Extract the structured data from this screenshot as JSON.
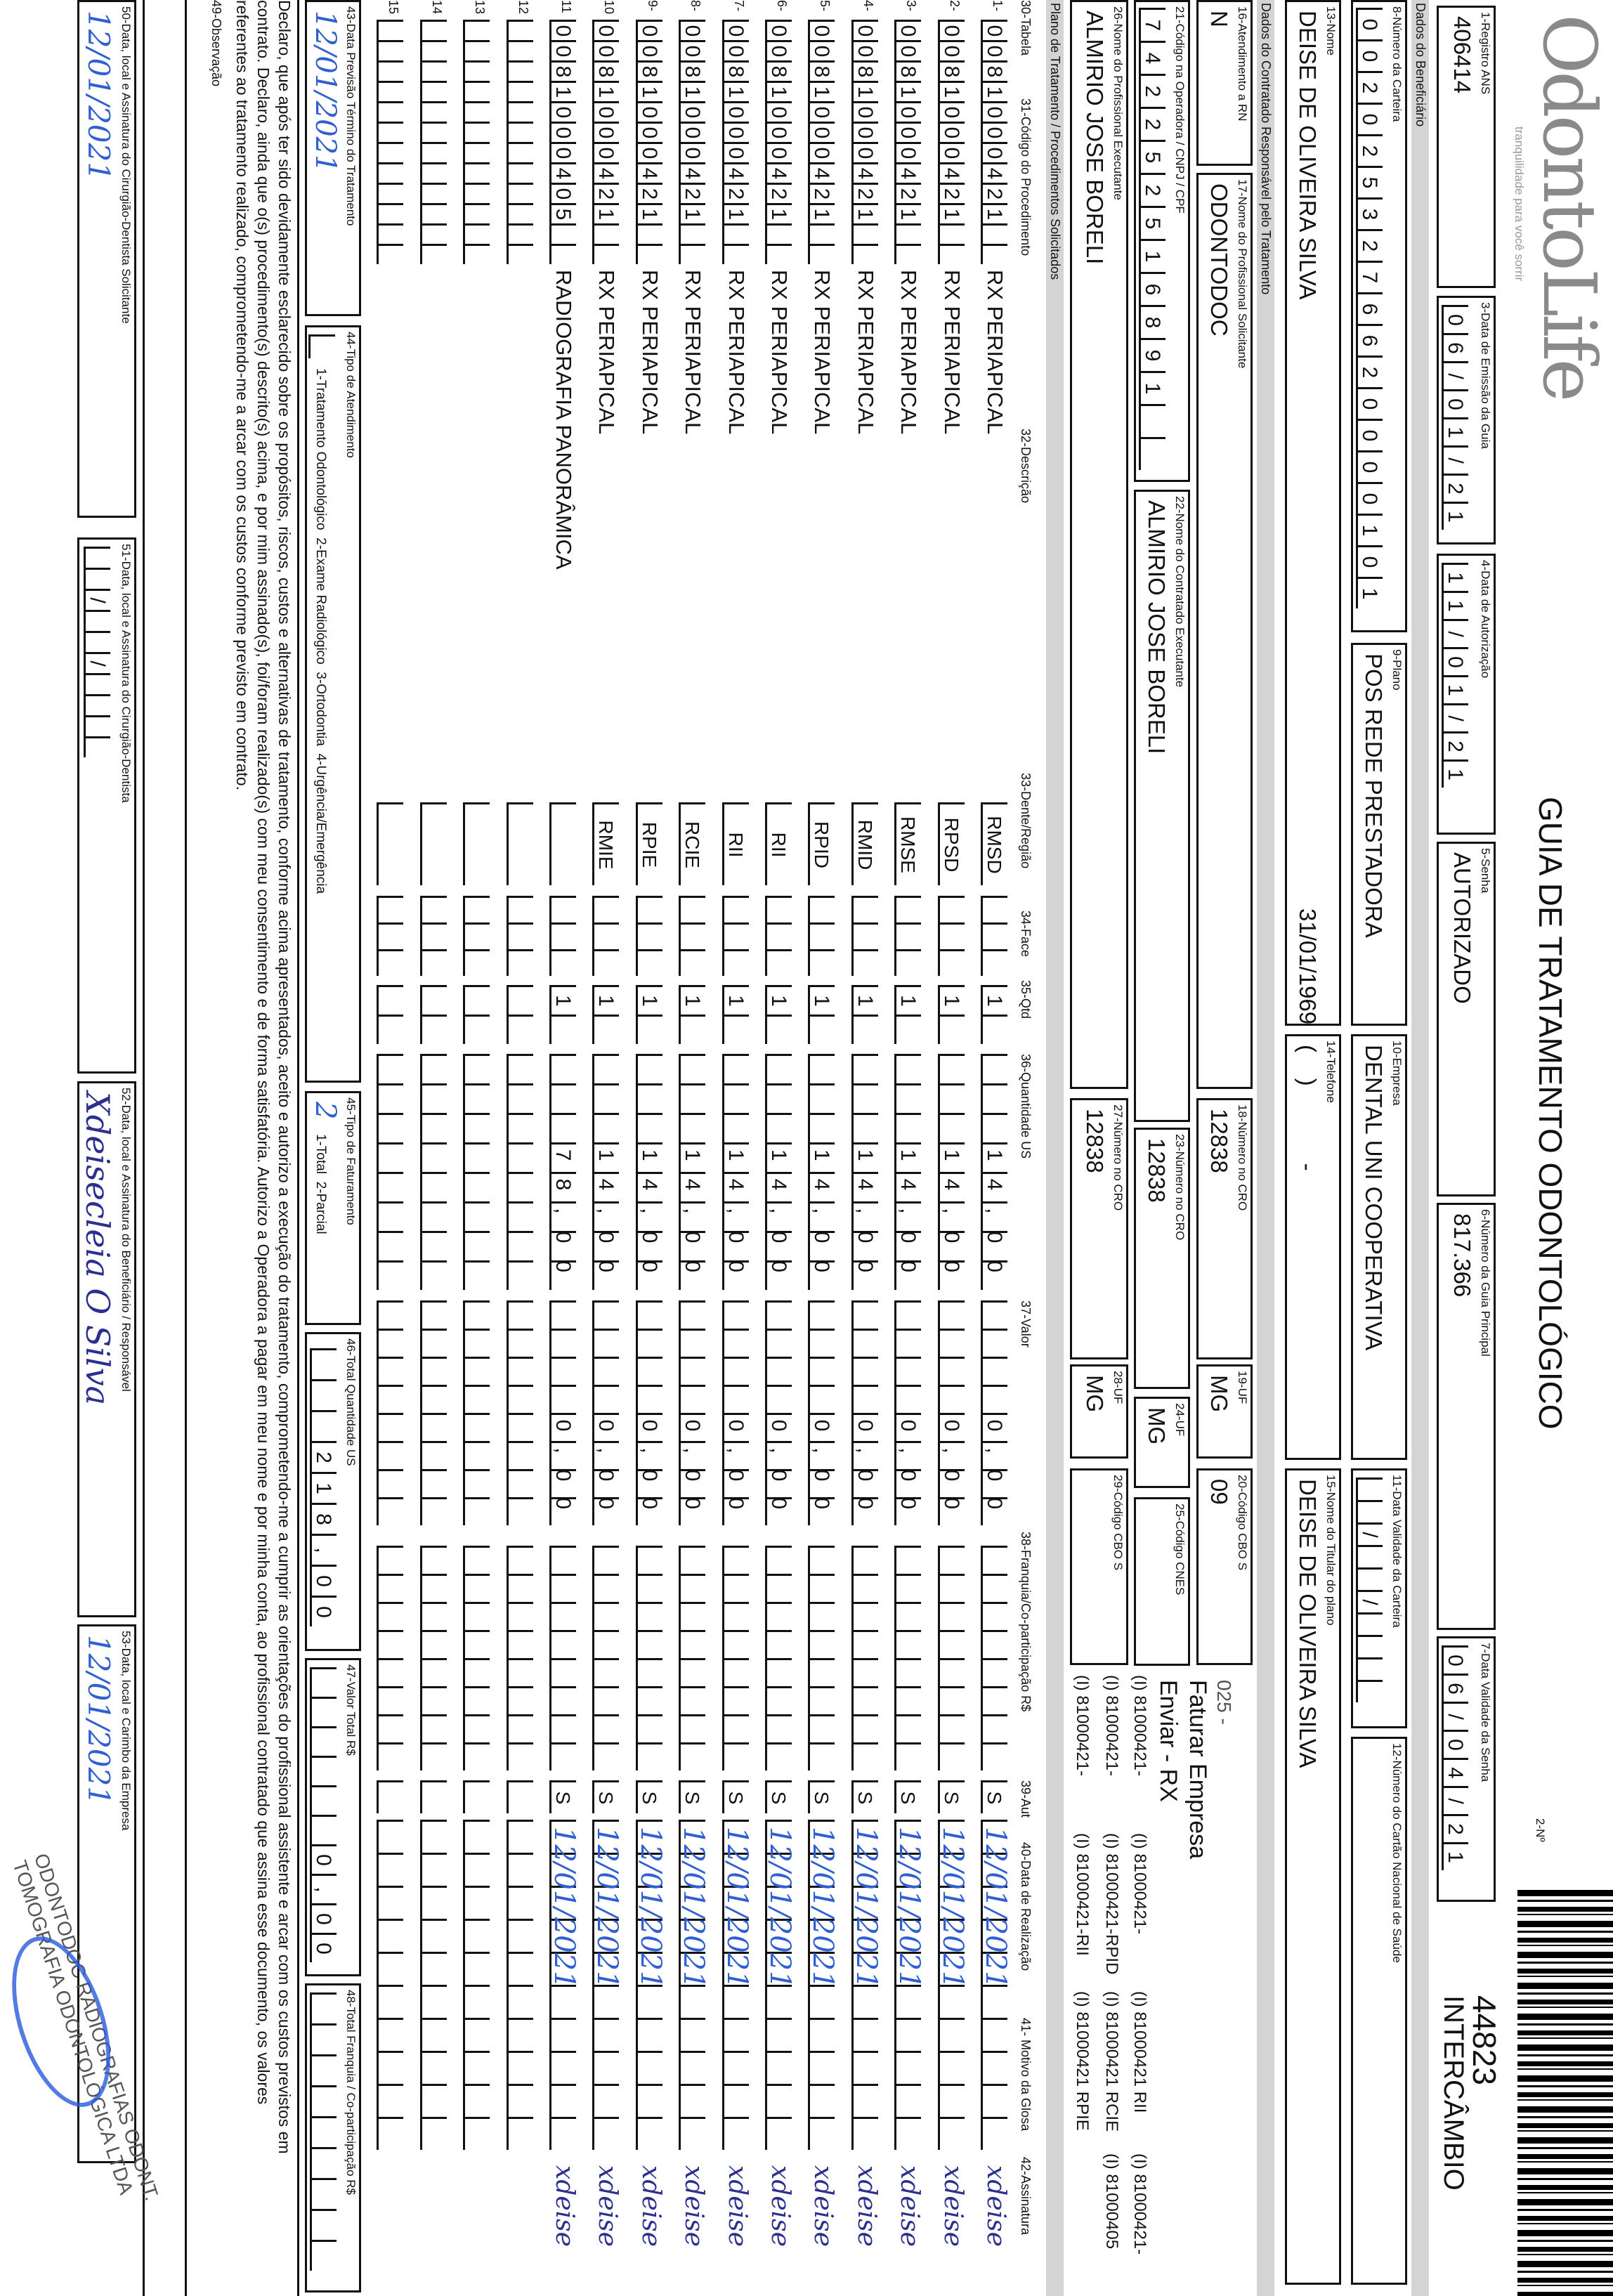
{
  "header": {
    "logo_text": "OdontoLife",
    "logo_tagline": "tranquilidade para você sorrir",
    "title": "GUIA DE TRATAMENTO ODONTOLÓGICO",
    "guide_no_label": "2-Nº",
    "guide_no": "44823",
    "guide_type": "INTERCÂMBIO"
  },
  "fields": {
    "f1": {
      "label": "1-Registro ANS",
      "value": "406414"
    },
    "f3": {
      "label": "3-Data de Emissão da Guia",
      "value": "06/01/21"
    },
    "f4": {
      "label": "4-Data de Autorização",
      "value": "11/01/21"
    },
    "f5": {
      "label": "5-Senha",
      "value": "AUTORIZADO"
    },
    "f6": {
      "label": "6-Número da Guia Principal",
      "value": "817.366"
    },
    "f7": {
      "label": "7-Data Validade da Senha",
      "value": "06/04/21"
    },
    "f8": {
      "label": "8-Número da Carteira",
      "value": "0020253276620000101"
    },
    "f9": {
      "label": "9-Plano",
      "value": "POS REDE PRESTADORA"
    },
    "f10": {
      "label": "10-Empresa",
      "value": "DENTAL UNI COOPERATIVA"
    },
    "f11": {
      "label": "11-Data Validade da Carteira",
      "value": "  /  /    "
    },
    "f12": {
      "label": "12-Número do Cartão Nacional de Saúde",
      "value": ""
    },
    "f13": {
      "label": "13-Nome",
      "value": "DEISE DE OLIVEIRA SILVA",
      "birth_date": "31/01/1969"
    },
    "f14": {
      "label": "14-Telefone",
      "value": "(    )            -"
    },
    "f15": {
      "label": "15-Nome do Titular do plano",
      "value": "DEISE DE OLIVEIRA SILVA"
    },
    "f16": {
      "label": "16-Atendimento a RN",
      "value": "N"
    },
    "f17": {
      "label": "17-Nome do Profissional Solicitante",
      "value": "ODONTODOC"
    },
    "f18": {
      "label": "18-Número no CRO",
      "value": "12838"
    },
    "f19": {
      "label": "19-UF",
      "value": "MG"
    },
    "f20": {
      "label": "20-Código CBO S",
      "value": "09"
    },
    "f21": {
      "label": "21-Código na Operadora / CNPJ / CPF",
      "value": "742252516891"
    },
    "f22": {
      "label": "22-Nome do Contratado Executante",
      "value": "ALMIRIO JOSE BORELI"
    },
    "f23": {
      "label": "23-Número no CRO",
      "value": "12838"
    },
    "f24": {
      "label": "24-UF",
      "value": "MG"
    },
    "f25": {
      "label": "25-Código CNES",
      "value": ""
    },
    "f26": {
      "label": "26-Nome do Profissional Executante",
      "value": "ALMIRIO JOSE BORELI"
    },
    "f27": {
      "label": "27-Número no CRO",
      "value": "12838"
    },
    "f28": {
      "label": "28-UF",
      "value": "MG"
    },
    "f29": {
      "label": "29-Código CBO S",
      "value": ""
    }
  },
  "sections": {
    "beneficiario": "Dados do Beneficiário",
    "contratado": "Dados do Contratado Responsável pelo Tratamento",
    "plano": "Plano de Tratamento / Procedimentos Solicitados"
  },
  "notes": {
    "line1": "025 -",
    "line2": "Faturar Empresa",
    "line3": "Enviar - RX",
    "codes": [
      [
        "(I) 81000421-",
        "(I) 81000421-",
        "(I) 81000421 RII",
        "(I) 81000421-"
      ],
      [
        "(I) 81000421-",
        "(I) 81000421-RPID",
        "(I) 81000421 RCIE",
        "(I) 81000405"
      ],
      [
        "(I) 81000421-",
        "(I) 81000421-RII",
        "(I) 81000421 RPIE",
        ""
      ]
    ]
  },
  "table": {
    "columns": {
      "c30": "30-Tabela",
      "c31": "31-Código do Procedimento",
      "c32": "32-Descrição",
      "c33": "33-Dente/Região",
      "c34": "34-Face",
      "c35": "35-Qtd",
      "c36": "36-Quantidade US",
      "c37": "37-Valor",
      "c38": "38-Franquia/Co-participação R$",
      "c39": "39-Aut",
      "c40": "40-Data de Realização",
      "c41": "41- Motivo da Glosa",
      "c42": "42-Assinatura"
    },
    "rows": [
      {
        "n": "1-",
        "tabela": "00",
        "codigo": "81000421",
        "descricao": "RX PERIAPICAL",
        "regiao": "RMSD",
        "face": "",
        "qtd": "1",
        "qtd_us": "14,00",
        "valor": "0,00",
        "franquia": "",
        "aut": "S",
        "data": "12/01/2021",
        "assinatura": "xdeise"
      },
      {
        "n": "2-",
        "tabela": "00",
        "codigo": "81000421",
        "descricao": "RX PERIAPICAL",
        "regiao": "RPSD",
        "face": "",
        "qtd": "1",
        "qtd_us": "14,00",
        "valor": "0,00",
        "franquia": "",
        "aut": "S",
        "data": "12/01/2021",
        "assinatura": "xdeise"
      },
      {
        "n": "3-",
        "tabela": "00",
        "codigo": "81000421",
        "descricao": "RX PERIAPICAL",
        "regiao": "RMSE",
        "face": "",
        "qtd": "1",
        "qtd_us": "14,00",
        "valor": "0,00",
        "franquia": "",
        "aut": "S",
        "data": "12/01/2021",
        "assinatura": "xdeise"
      },
      {
        "n": "4-",
        "tabela": "00",
        "codigo": "81000421",
        "descricao": "RX PERIAPICAL",
        "regiao": "RMID",
        "face": "",
        "qtd": "1",
        "qtd_us": "14,00",
        "valor": "0,00",
        "franquia": "",
        "aut": "S",
        "data": "12/01/2021",
        "assinatura": "xdeise"
      },
      {
        "n": "5-",
        "tabela": "00",
        "codigo": "81000421",
        "descricao": "RX PERIAPICAL",
        "regiao": "RPID",
        "face": "",
        "qtd": "1",
        "qtd_us": "14,00",
        "valor": "0,00",
        "franquia": "",
        "aut": "S",
        "data": "12/01/2021",
        "assinatura": "xdeise"
      },
      {
        "n": "6-",
        "tabela": "00",
        "codigo": "81000421",
        "descricao": "RX PERIAPICAL",
        "regiao": "RII",
        "face": "",
        "qtd": "1",
        "qtd_us": "14,00",
        "valor": "0,00",
        "franquia": "",
        "aut": "S",
        "data": "12/01/2021",
        "assinatura": "xdeise"
      },
      {
        "n": "7-",
        "tabela": "00",
        "codigo": "81000421",
        "descricao": "RX PERIAPICAL",
        "regiao": "RII",
        "face": "",
        "qtd": "1",
        "qtd_us": "14,00",
        "valor": "0,00",
        "franquia": "",
        "aut": "S",
        "data": "12/01/2021",
        "assinatura": "xdeise"
      },
      {
        "n": "8-",
        "tabela": "00",
        "codigo": "81000421",
        "descricao": "RX PERIAPICAL",
        "regiao": "RCIE",
        "face": "",
        "qtd": "1",
        "qtd_us": "14,00",
        "valor": "0,00",
        "franquia": "",
        "aut": "S",
        "data": "12/01/2021",
        "assinatura": "xdeise"
      },
      {
        "n": "9-",
        "tabela": "00",
        "codigo": "81000421",
        "descricao": "RX PERIAPICAL",
        "regiao": "RPIE",
        "face": "",
        "qtd": "1",
        "qtd_us": "14,00",
        "valor": "0,00",
        "franquia": "",
        "aut": "S",
        "data": "12/01/2021",
        "assinatura": "xdeise"
      },
      {
        "n": "10",
        "tabela": "00",
        "codigo": "81000421",
        "descricao": "RX PERIAPICAL",
        "regiao": "RMIE",
        "face": "",
        "qtd": "1",
        "qtd_us": "14,00",
        "valor": "0,00",
        "franquia": "",
        "aut": "S",
        "data": "12/01/2021",
        "assinatura": "xdeise"
      },
      {
        "n": "11",
        "tabela": "00",
        "codigo": "81000405",
        "descricao": "RADIOGRAFIA PANORÂMICA",
        "regiao": "",
        "face": "",
        "qtd": "1",
        "qtd_us": "78,00",
        "valor": "0,00",
        "franquia": "",
        "aut": "S",
        "data": "12/01/2021",
        "assinatura": "xdeise"
      },
      {
        "n": "12",
        "tabela": "",
        "codigo": "",
        "descricao": "",
        "regiao": "",
        "face": "",
        "qtd": "",
        "qtd_us": "",
        "valor": "",
        "franquia": "",
        "aut": "",
        "data": "",
        "assinatura": ""
      },
      {
        "n": "13",
        "tabela": "",
        "codigo": "",
        "descricao": "",
        "regiao": "",
        "face": "",
        "qtd": "",
        "qtd_us": "",
        "valor": "",
        "franquia": "",
        "aut": "",
        "data": "",
        "assinatura": ""
      },
      {
        "n": "14",
        "tabela": "",
        "codigo": "",
        "descricao": "",
        "regiao": "",
        "face": "",
        "qtd": "",
        "qtd_us": "",
        "valor": "",
        "franquia": "",
        "aut": "",
        "data": "",
        "assinatura": ""
      },
      {
        "n": "15",
        "tabela": "",
        "codigo": "",
        "descricao": "",
        "regiao": "",
        "face": "",
        "qtd": "",
        "qtd_us": "",
        "valor": "",
        "franquia": "",
        "aut": "",
        "data": "",
        "assinatura": ""
      }
    ]
  },
  "footer": {
    "f43": {
      "label": "43-Data Previsão Término do Tratamento",
      "value": "12/01/2021"
    },
    "f44": {
      "label": "44-Tipo de Atendimento",
      "options": "1-Tratamento Odontológico  2-Exame Radiológico  3-Ortodontia  4-Urgência/Emergência",
      "value": ""
    },
    "f45": {
      "label": "45-Tipo de Faturamento",
      "options": "1-Total  2-Parcial",
      "value": "2"
    },
    "f46": {
      "label": "46-Total Quantidade US",
      "value": "218,00"
    },
    "f47": {
      "label": "47-Valor Total R$",
      "value": "0,00"
    },
    "f48": {
      "label": "48-Total Franquia / Co-participação R$",
      "value": ""
    },
    "declaration": [
      "Declaro, que após ter sido devidamente esclarecido sobre os propósitos, riscos, custos e alternativas de tratamento, conforme acima apresentados, aceito e autorizo a execução do tratamento, comprometendo-me a cumprir as orientações do profissional assistente e arcar com os custos previstos em",
      "contrato. Declaro, ainda que o(s) procedimento(s) descrito(s) acima, e por mim assinado(s), foi/foram realizado(s) com meu consentimento e de forma satisfatória. Autorizo a Operadora a pagar em meu nome e por minha conta, ao profissional contratado que assina esse documento, os valores",
      "referentes ao tratamento realizado, comprometendo-me a arcar com os custos conforme previsto em contrato."
    ],
    "f49": {
      "label": "49-Observação"
    },
    "f50": {
      "label": "50-Data, local e Assinatura do Cirurgião-Dentista Solicitante",
      "value": "12/01/2021"
    },
    "f51": {
      "label": "51-Data, local e Assinatura do Cirurgião-Dentista",
      "value": "  /  /    "
    },
    "f52": {
      "label": "52-Data, local e Assinatura do Beneficiário / Responsável",
      "signature": "Xdeisecleia O Silva"
    },
    "f53": {
      "label": "53-Data, local e Carimbo da Empresa",
      "value": "12/01/2021"
    },
    "stamp": [
      "ODONTODOC RADIOGRAFIAS ODONT.",
      "TOMOGRAFIA ODONTOLÓGICA LTDA"
    ]
  },
  "colors": {
    "ink": "#111111",
    "band": "#d4d4d4",
    "handwriting": "#2f5fd0",
    "signature": "#2b2f8f"
  }
}
